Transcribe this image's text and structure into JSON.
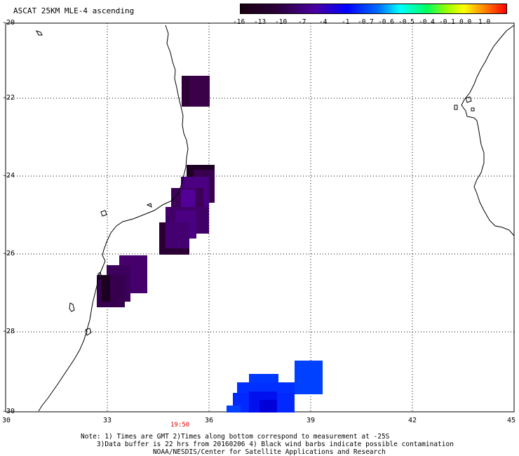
{
  "title": "ASCAT 25KM MLE-4 ascending",
  "colorbar": {
    "labels": [
      "-16",
      "-13",
      "-10",
      "-7",
      "-4",
      "-1",
      "-0.7",
      "-0.6",
      "-0.5",
      "-0.4",
      "-0.1",
      "0.0",
      "1.0"
    ]
  },
  "axes": {
    "lat_labels": [
      "-20",
      "-22",
      "-24",
      "-26",
      "-28",
      "-30"
    ],
    "lon_labels": [
      "30",
      "33",
      "36",
      "39",
      "42",
      "45"
    ],
    "lat_range": [
      -30,
      -20
    ],
    "lon_range": [
      30,
      45
    ]
  },
  "time_label": "19:50",
  "note": {
    "line1": "Note: 1) Times are GMT 2)Times along bottom correspond to measurement at -25S",
    "line2": "3)Data buffer is 22 hrs from 20160206 4) Black wind barbs indicate possible contamination",
    "line3": "NOAA/NESDIS/Center for Satellite Applications and Research"
  },
  "colors": {
    "dark_purple": "#3a0050",
    "purple": "#5000a0",
    "blue": "#0000ff",
    "bright_blue": "#0030ff",
    "time_red": "#e00000"
  }
}
